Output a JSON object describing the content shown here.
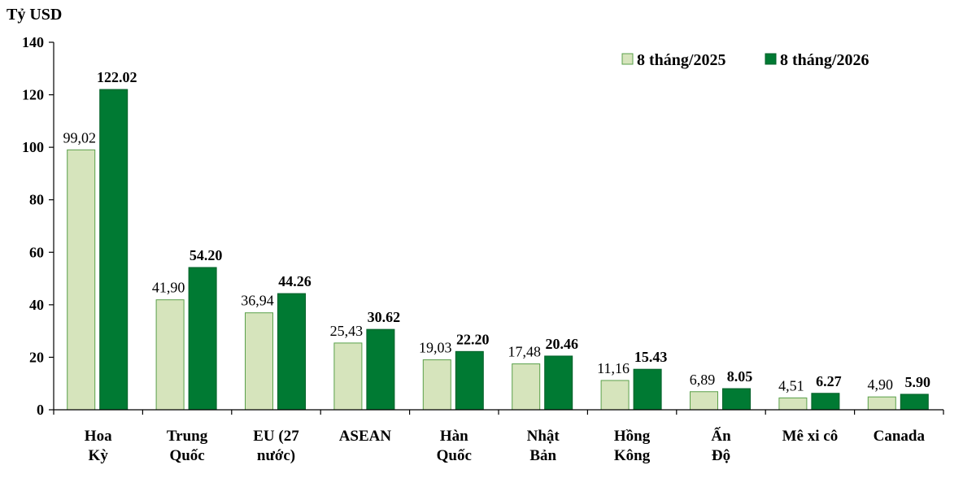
{
  "chart_data": {
    "type": "bar",
    "ylabel": "Tỷ USD",
    "ylim": [
      0,
      140
    ],
    "yticks": [
      "0",
      "20",
      "40",
      "60",
      "80",
      "100",
      "120",
      "140"
    ],
    "categories": [
      [
        "Hoa",
        "Kỳ"
      ],
      [
        "Trung",
        "Quốc"
      ],
      [
        "EU (27",
        "nước)"
      ],
      [
        "ASEAN"
      ],
      [
        "Hàn",
        "Quốc"
      ],
      [
        "Nhật",
        "Bản"
      ],
      [
        "Hồng",
        "Kông"
      ],
      [
        "Ấn",
        "Độ"
      ],
      [
        "Mê xi cô"
      ],
      [
        "Canada"
      ]
    ],
    "series": [
      {
        "name": "8 tháng/2025",
        "color": "#d6e4bc",
        "values": [
          99.02,
          41.9,
          36.94,
          25.43,
          19.03,
          17.48,
          11.16,
          6.89,
          4.51,
          4.9
        ],
        "labels": [
          "99,02",
          "41,90",
          "36,94",
          "25,43",
          "19,03",
          "17,48",
          "11,16",
          "6,89",
          "4,51",
          "4,90"
        ]
      },
      {
        "name": "8 tháng/2026",
        "color": "#007a33",
        "values": [
          122.02,
          54.2,
          44.26,
          30.62,
          22.2,
          20.46,
          15.43,
          8.05,
          6.27,
          5.9
        ],
        "labels": [
          "122.02",
          "54.20",
          "44.26",
          "30.62",
          "22.20",
          "20.46",
          "15.43",
          "8.05",
          "6.27",
          "5.90"
        ]
      }
    ],
    "grid": false,
    "legend_position": "top-right"
  }
}
